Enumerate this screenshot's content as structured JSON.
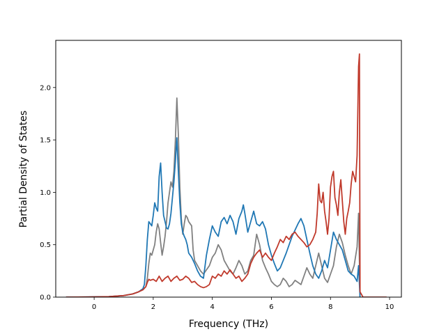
{
  "chart_data": {
    "type": "line",
    "title": "",
    "xlabel": "Frequency (THz)",
    "ylabel": "Partial Density of States",
    "xlim": [
      -1.3,
      10.4
    ],
    "ylim": [
      0.0,
      2.45
    ],
    "xticks": [
      0,
      2,
      4,
      6,
      8,
      10
    ],
    "xtick_labels": [
      "0",
      "2",
      "4",
      "6",
      "8",
      "10"
    ],
    "yticks": [
      0.0,
      0.5,
      1.0,
      1.5,
      2.0
    ],
    "ytick_labels": [
      "0.0",
      "0.5",
      "1.0",
      "1.5",
      "2.0"
    ],
    "grid": false,
    "legend": "none",
    "series": [
      {
        "color": "#808080",
        "points": [
          [
            -0.95,
            0
          ],
          [
            0,
            0.002
          ],
          [
            0.5,
            0.005
          ],
          [
            1.0,
            0.015
          ],
          [
            1.3,
            0.03
          ],
          [
            1.5,
            0.05
          ],
          [
            1.65,
            0.07
          ],
          [
            1.75,
            0.1
          ],
          [
            1.8,
            0.18
          ],
          [
            1.85,
            0.32
          ],
          [
            1.9,
            0.42
          ],
          [
            1.95,
            0.4
          ],
          [
            2.0,
            0.45
          ],
          [
            2.05,
            0.5
          ],
          [
            2.1,
            0.62
          ],
          [
            2.15,
            0.7
          ],
          [
            2.2,
            0.65
          ],
          [
            2.25,
            0.52
          ],
          [
            2.3,
            0.4
          ],
          [
            2.35,
            0.48
          ],
          [
            2.4,
            0.58
          ],
          [
            2.45,
            0.72
          ],
          [
            2.5,
            0.9
          ],
          [
            2.55,
            1.0
          ],
          [
            2.6,
            1.1
          ],
          [
            2.65,
            1.05
          ],
          [
            2.7,
            1.2
          ],
          [
            2.75,
            1.5
          ],
          [
            2.8,
            1.9
          ],
          [
            2.85,
            1.55
          ],
          [
            2.9,
            1.05
          ],
          [
            2.95,
            0.75
          ],
          [
            3.0,
            0.6
          ],
          [
            3.05,
            0.7
          ],
          [
            3.1,
            0.78
          ],
          [
            3.15,
            0.76
          ],
          [
            3.2,
            0.72
          ],
          [
            3.25,
            0.7
          ],
          [
            3.3,
            0.68
          ],
          [
            3.35,
            0.45
          ],
          [
            3.4,
            0.35
          ],
          [
            3.5,
            0.3
          ],
          [
            3.6,
            0.25
          ],
          [
            3.7,
            0.22
          ],
          [
            3.8,
            0.26
          ],
          [
            3.9,
            0.3
          ],
          [
            4.0,
            0.38
          ],
          [
            4.1,
            0.42
          ],
          [
            4.2,
            0.5
          ],
          [
            4.3,
            0.45
          ],
          [
            4.4,
            0.35
          ],
          [
            4.5,
            0.3
          ],
          [
            4.6,
            0.25
          ],
          [
            4.7,
            0.22
          ],
          [
            4.8,
            0.28
          ],
          [
            4.9,
            0.35
          ],
          [
            5.0,
            0.3
          ],
          [
            5.1,
            0.22
          ],
          [
            5.2,
            0.25
          ],
          [
            5.3,
            0.35
          ],
          [
            5.4,
            0.4
          ],
          [
            5.5,
            0.6
          ],
          [
            5.6,
            0.5
          ],
          [
            5.7,
            0.35
          ],
          [
            5.8,
            0.28
          ],
          [
            5.9,
            0.22
          ],
          [
            6.0,
            0.15
          ],
          [
            6.1,
            0.12
          ],
          [
            6.2,
            0.1
          ],
          [
            6.3,
            0.12
          ],
          [
            6.4,
            0.18
          ],
          [
            6.5,
            0.15
          ],
          [
            6.6,
            0.1
          ],
          [
            6.7,
            0.12
          ],
          [
            6.8,
            0.16
          ],
          [
            6.9,
            0.14
          ],
          [
            7.0,
            0.12
          ],
          [
            7.1,
            0.2
          ],
          [
            7.2,
            0.28
          ],
          [
            7.3,
            0.22
          ],
          [
            7.4,
            0.18
          ],
          [
            7.5,
            0.3
          ],
          [
            7.6,
            0.42
          ],
          [
            7.7,
            0.3
          ],
          [
            7.8,
            0.18
          ],
          [
            7.9,
            0.14
          ],
          [
            8.0,
            0.22
          ],
          [
            8.1,
            0.3
          ],
          [
            8.2,
            0.48
          ],
          [
            8.3,
            0.6
          ],
          [
            8.4,
            0.52
          ],
          [
            8.5,
            0.4
          ],
          [
            8.6,
            0.3
          ],
          [
            8.7,
            0.22
          ],
          [
            8.8,
            0.3
          ],
          [
            8.9,
            0.48
          ],
          [
            8.95,
            0.8
          ],
          [
            9.0,
            0
          ]
        ]
      },
      {
        "color": "#1f77b4",
        "points": [
          [
            -0.95,
            0
          ],
          [
            0,
            0.002
          ],
          [
            0.5,
            0.005
          ],
          [
            1.0,
            0.015
          ],
          [
            1.3,
            0.03
          ],
          [
            1.5,
            0.05
          ],
          [
            1.65,
            0.08
          ],
          [
            1.7,
            0.12
          ],
          [
            1.75,
            0.3
          ],
          [
            1.8,
            0.55
          ],
          [
            1.85,
            0.72
          ],
          [
            1.9,
            0.7
          ],
          [
            1.95,
            0.68
          ],
          [
            2.0,
            0.78
          ],
          [
            2.05,
            0.9
          ],
          [
            2.1,
            0.85
          ],
          [
            2.15,
            0.82
          ],
          [
            2.2,
            1.15
          ],
          [
            2.25,
            1.28
          ],
          [
            2.3,
            1.0
          ],
          [
            2.35,
            0.78
          ],
          [
            2.4,
            0.72
          ],
          [
            2.45,
            0.66
          ],
          [
            2.5,
            0.65
          ],
          [
            2.55,
            0.7
          ],
          [
            2.6,
            0.8
          ],
          [
            2.65,
            0.95
          ],
          [
            2.7,
            1.1
          ],
          [
            2.75,
            1.3
          ],
          [
            2.8,
            1.52
          ],
          [
            2.85,
            1.2
          ],
          [
            2.9,
            0.9
          ],
          [
            2.95,
            0.7
          ],
          [
            3.0,
            0.62
          ],
          [
            3.05,
            0.58
          ],
          [
            3.1,
            0.55
          ],
          [
            3.15,
            0.5
          ],
          [
            3.2,
            0.42
          ],
          [
            3.3,
            0.38
          ],
          [
            3.4,
            0.32
          ],
          [
            3.5,
            0.25
          ],
          [
            3.6,
            0.2
          ],
          [
            3.7,
            0.18
          ],
          [
            3.8,
            0.4
          ],
          [
            3.9,
            0.55
          ],
          [
            4.0,
            0.68
          ],
          [
            4.1,
            0.62
          ],
          [
            4.2,
            0.58
          ],
          [
            4.3,
            0.72
          ],
          [
            4.4,
            0.76
          ],
          [
            4.5,
            0.7
          ],
          [
            4.6,
            0.78
          ],
          [
            4.7,
            0.72
          ],
          [
            4.8,
            0.6
          ],
          [
            4.9,
            0.75
          ],
          [
            5.0,
            0.82
          ],
          [
            5.05,
            0.88
          ],
          [
            5.1,
            0.8
          ],
          [
            5.2,
            0.62
          ],
          [
            5.3,
            0.72
          ],
          [
            5.4,
            0.82
          ],
          [
            5.5,
            0.7
          ],
          [
            5.6,
            0.68
          ],
          [
            5.7,
            0.72
          ],
          [
            5.8,
            0.65
          ],
          [
            5.9,
            0.5
          ],
          [
            6.0,
            0.4
          ],
          [
            6.1,
            0.32
          ],
          [
            6.2,
            0.25
          ],
          [
            6.3,
            0.28
          ],
          [
            6.4,
            0.35
          ],
          [
            6.5,
            0.42
          ],
          [
            6.6,
            0.5
          ],
          [
            6.7,
            0.58
          ],
          [
            6.8,
            0.64
          ],
          [
            6.9,
            0.7
          ],
          [
            7.0,
            0.75
          ],
          [
            7.1,
            0.68
          ],
          [
            7.2,
            0.55
          ],
          [
            7.3,
            0.42
          ],
          [
            7.4,
            0.3
          ],
          [
            7.5,
            0.22
          ],
          [
            7.6,
            0.18
          ],
          [
            7.7,
            0.25
          ],
          [
            7.8,
            0.35
          ],
          [
            7.9,
            0.28
          ],
          [
            8.0,
            0.45
          ],
          [
            8.1,
            0.62
          ],
          [
            8.2,
            0.55
          ],
          [
            8.3,
            0.5
          ],
          [
            8.4,
            0.45
          ],
          [
            8.5,
            0.35
          ],
          [
            8.6,
            0.25
          ],
          [
            8.7,
            0.22
          ],
          [
            8.8,
            0.2
          ],
          [
            8.9,
            0.15
          ],
          [
            8.95,
            0.3
          ],
          [
            9.0,
            0
          ]
        ]
      },
      {
        "color": "#c0392b",
        "points": [
          [
            -0.95,
            0
          ],
          [
            0,
            0.002
          ],
          [
            0.5,
            0.005
          ],
          [
            1.0,
            0.015
          ],
          [
            1.3,
            0.03
          ],
          [
            1.5,
            0.05
          ],
          [
            1.65,
            0.07
          ],
          [
            1.75,
            0.1
          ],
          [
            1.8,
            0.14
          ],
          [
            1.85,
            0.17
          ],
          [
            1.9,
            0.16
          ],
          [
            2.0,
            0.17
          ],
          [
            2.1,
            0.15
          ],
          [
            2.2,
            0.2
          ],
          [
            2.3,
            0.15
          ],
          [
            2.4,
            0.18
          ],
          [
            2.5,
            0.2
          ],
          [
            2.6,
            0.15
          ],
          [
            2.7,
            0.18
          ],
          [
            2.8,
            0.2
          ],
          [
            2.9,
            0.16
          ],
          [
            3.0,
            0.17
          ],
          [
            3.1,
            0.2
          ],
          [
            3.2,
            0.18
          ],
          [
            3.3,
            0.14
          ],
          [
            3.4,
            0.15
          ],
          [
            3.5,
            0.12
          ],
          [
            3.6,
            0.1
          ],
          [
            3.7,
            0.09
          ],
          [
            3.8,
            0.1
          ],
          [
            3.9,
            0.12
          ],
          [
            4.0,
            0.2
          ],
          [
            4.1,
            0.18
          ],
          [
            4.2,
            0.22
          ],
          [
            4.3,
            0.2
          ],
          [
            4.4,
            0.25
          ],
          [
            4.5,
            0.22
          ],
          [
            4.6,
            0.26
          ],
          [
            4.7,
            0.22
          ],
          [
            4.8,
            0.18
          ],
          [
            4.9,
            0.2
          ],
          [
            5.0,
            0.15
          ],
          [
            5.1,
            0.18
          ],
          [
            5.2,
            0.22
          ],
          [
            5.3,
            0.32
          ],
          [
            5.4,
            0.38
          ],
          [
            5.5,
            0.42
          ],
          [
            5.6,
            0.45
          ],
          [
            5.7,
            0.38
          ],
          [
            5.8,
            0.42
          ],
          [
            5.9,
            0.38
          ],
          [
            6.0,
            0.35
          ],
          [
            6.1,
            0.42
          ],
          [
            6.2,
            0.48
          ],
          [
            6.3,
            0.55
          ],
          [
            6.4,
            0.52
          ],
          [
            6.5,
            0.58
          ],
          [
            6.6,
            0.55
          ],
          [
            6.7,
            0.6
          ],
          [
            6.8,
            0.62
          ],
          [
            6.9,
            0.58
          ],
          [
            7.0,
            0.55
          ],
          [
            7.1,
            0.52
          ],
          [
            7.2,
            0.48
          ],
          [
            7.3,
            0.5
          ],
          [
            7.4,
            0.55
          ],
          [
            7.5,
            0.62
          ],
          [
            7.55,
            0.8
          ],
          [
            7.6,
            1.08
          ],
          [
            7.65,
            0.92
          ],
          [
            7.7,
            0.9
          ],
          [
            7.75,
            1.0
          ],
          [
            7.8,
            0.82
          ],
          [
            7.85,
            0.72
          ],
          [
            7.9,
            0.6
          ],
          [
            7.95,
            0.75
          ],
          [
            8.0,
            1.05
          ],
          [
            8.05,
            1.15
          ],
          [
            8.1,
            1.2
          ],
          [
            8.15,
            0.95
          ],
          [
            8.2,
            0.88
          ],
          [
            8.25,
            0.78
          ],
          [
            8.3,
            1.0
          ],
          [
            8.35,
            1.12
          ],
          [
            8.4,
            0.92
          ],
          [
            8.45,
            0.72
          ],
          [
            8.5,
            0.6
          ],
          [
            8.55,
            0.75
          ],
          [
            8.6,
            0.82
          ],
          [
            8.65,
            0.9
          ],
          [
            8.7,
            1.08
          ],
          [
            8.75,
            1.2
          ],
          [
            8.8,
            1.15
          ],
          [
            8.85,
            1.1
          ],
          [
            8.9,
            1.35
          ],
          [
            8.95,
            2.2
          ],
          [
            8.98,
            2.32
          ],
          [
            9.0,
            0.05
          ],
          [
            9.1,
            0
          ],
          [
            9.9,
            0
          ]
        ]
      }
    ]
  }
}
